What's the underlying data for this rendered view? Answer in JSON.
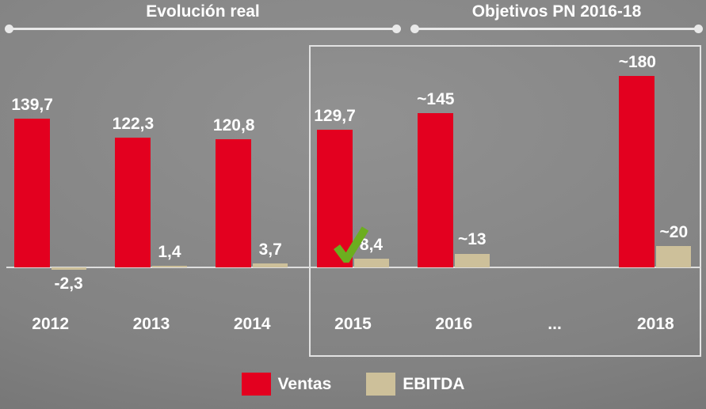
{
  "header": {
    "left_span_label": "Evolución real",
    "right_span_label": "Objetivos PN 2016-18"
  },
  "legend": {
    "ventas_label": "Ventas",
    "ebitda_label": "EBITDA"
  },
  "colors": {
    "ventas": "#e3001f",
    "ebitda": "#cdc09a",
    "text": "#ffffff",
    "bracket": "#e9e9e9",
    "checkmark": "#6cae1f",
    "background": "#828282"
  },
  "chart_data": {
    "type": "bar",
    "categories": [
      "2012",
      "2013",
      "2014",
      "2015",
      "2016",
      "...",
      "2018"
    ],
    "series": [
      {
        "name": "Ventas",
        "values": [
          139.7,
          122.3,
          120.8,
          129.7,
          145,
          null,
          180
        ],
        "labels": [
          "139,7",
          "122,3",
          "120,8",
          "129,7",
          "~145",
          "",
          "~180"
        ]
      },
      {
        "name": "EBITDA",
        "values": [
          -2.3,
          1.4,
          3.7,
          8.4,
          13,
          null,
          20
        ],
        "labels": [
          "-2,3",
          "1,4",
          "3,7",
          "8,4",
          "~13",
          "",
          "~20"
        ]
      }
    ],
    "ylim": [
      -10,
      200
    ],
    "grid": false,
    "legend_position": "bottom",
    "annotations": [
      {
        "type": "checkmark",
        "category": "2015",
        "series": "EBITDA"
      }
    ],
    "objectives_box_categories": [
      "2015",
      "2016",
      "...",
      "2018"
    ]
  }
}
